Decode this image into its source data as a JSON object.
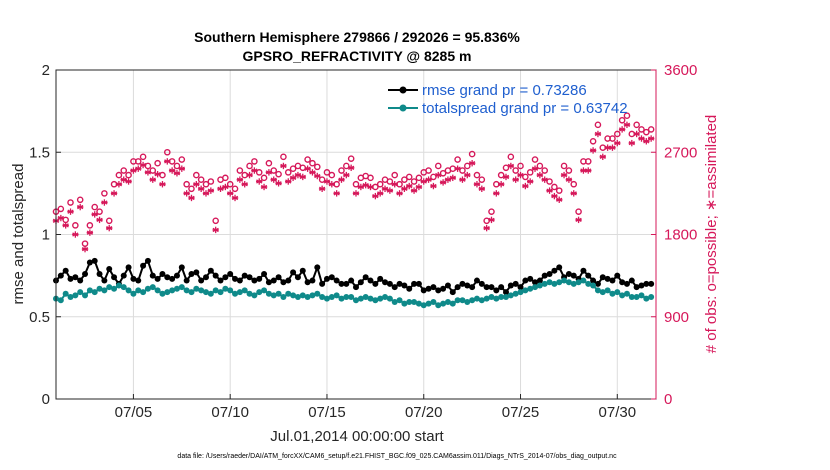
{
  "chart_data": {
    "type": "line",
    "title_line1": "Southern Hemisphere 279866 / 292026 = 95.836%",
    "title_line2": "GPSRO_REFRACTIVITY @ 8285 m",
    "xlabel": "Jul.01,2014 00:00:00 start",
    "ylabel_left": "rmse and totalspread",
    "ylabel_right": "# of obs: o=possible; ∗=assimilated",
    "footer": "data file: /Users/raeder/DAI/ATM_forcXX/CAM6_setup/f.e21.FHIST_BGC.f09_025.CAM6assim.011/Diags_NTrS_2014-07/obs_diag_output.nc",
    "x_ticks": [
      "07/05",
      "07/10",
      "07/15",
      "07/20",
      "07/25",
      "07/30"
    ],
    "x_tick_days": [
      5,
      10,
      15,
      20,
      25,
      30
    ],
    "xlim": [
      1.0,
      32.0
    ],
    "y_left_ticks": [
      "0",
      "0.5",
      "1",
      "1.5",
      "2"
    ],
    "ylim_left": [
      0,
      2
    ],
    "y_right_ticks": [
      "0",
      "900",
      "1800",
      "2700",
      "3600"
    ],
    "ylim_right": [
      0,
      3600
    ],
    "grid": true,
    "legend_position": "top-right",
    "x_days": [
      1.0,
      1.25,
      1.5,
      1.75,
      2.0,
      2.25,
      2.5,
      2.75,
      3.0,
      3.25,
      3.5,
      3.75,
      4.0,
      4.25,
      4.5,
      4.75,
      5.0,
      5.25,
      5.5,
      5.75,
      6.0,
      6.25,
      6.5,
      6.75,
      7.0,
      7.25,
      7.5,
      7.75,
      8.0,
      8.25,
      8.5,
      8.75,
      9.0,
      9.25,
      9.5,
      9.75,
      10.0,
      10.25,
      10.5,
      10.75,
      11.0,
      11.25,
      11.5,
      11.75,
      12.0,
      12.25,
      12.5,
      12.75,
      13.0,
      13.25,
      13.5,
      13.75,
      14.0,
      14.25,
      14.5,
      14.75,
      15.0,
      15.25,
      15.5,
      15.75,
      16.0,
      16.25,
      16.5,
      16.75,
      17.0,
      17.25,
      17.5,
      17.75,
      18.0,
      18.25,
      18.5,
      18.75,
      19.0,
      19.25,
      19.5,
      19.75,
      20.0,
      20.25,
      20.5,
      20.75,
      21.0,
      21.25,
      21.5,
      21.75,
      22.0,
      22.25,
      22.5,
      22.75,
      23.0,
      23.25,
      23.5,
      23.75,
      24.0,
      24.25,
      24.5,
      24.75,
      25.0,
      25.25,
      25.5,
      25.75,
      26.0,
      26.25,
      26.5,
      26.75,
      27.0,
      27.25,
      27.5,
      27.75,
      28.0,
      28.25,
      28.5,
      28.75,
      29.0,
      29.25,
      29.5,
      29.75,
      30.0,
      30.25,
      30.5,
      30.75,
      31.0,
      31.25,
      31.5,
      31.75
    ],
    "series": [
      {
        "name": "rmse grand pr = 0.73286",
        "axis": "left",
        "color": "#000000",
        "marker": "circle",
        "values": [
          0.72,
          0.75,
          0.78,
          0.73,
          0.74,
          0.72,
          0.76,
          0.83,
          0.84,
          0.76,
          0.72,
          0.79,
          0.74,
          0.7,
          0.75,
          0.8,
          0.73,
          0.72,
          0.81,
          0.84,
          0.75,
          0.73,
          0.76,
          0.74,
          0.73,
          0.75,
          0.8,
          0.72,
          0.76,
          0.77,
          0.72,
          0.74,
          0.78,
          0.75,
          0.72,
          0.74,
          0.76,
          0.73,
          0.72,
          0.75,
          0.74,
          0.72,
          0.73,
          0.76,
          0.71,
          0.72,
          0.74,
          0.71,
          0.72,
          0.77,
          0.74,
          0.78,
          0.71,
          0.72,
          0.8,
          0.7,
          0.73,
          0.74,
          0.72,
          0.7,
          0.7,
          0.72,
          0.68,
          0.71,
          0.74,
          0.72,
          0.7,
          0.73,
          0.71,
          0.7,
          0.68,
          0.7,
          0.69,
          0.67,
          0.7,
          0.7,
          0.66,
          0.67,
          0.68,
          0.66,
          0.67,
          0.69,
          0.65,
          0.68,
          0.7,
          0.69,
          0.68,
          0.72,
          0.7,
          0.68,
          0.68,
          0.66,
          0.68,
          0.65,
          0.69,
          0.7,
          0.68,
          0.72,
          0.73,
          0.71,
          0.72,
          0.75,
          0.76,
          0.78,
          0.8,
          0.74,
          0.76,
          0.75,
          0.73,
          0.78,
          0.75,
          0.72,
          0.7,
          0.74,
          0.73,
          0.72,
          0.75,
          0.71,
          0.7,
          0.72,
          0.68,
          0.69,
          0.7,
          0.7
        ]
      },
      {
        "name": "totalspread grand pr = 0.63742",
        "axis": "left",
        "color": "#0f8a8a",
        "marker": "circle",
        "values": [
          0.61,
          0.6,
          0.64,
          0.62,
          0.63,
          0.65,
          0.63,
          0.66,
          0.65,
          0.67,
          0.66,
          0.68,
          0.67,
          0.69,
          0.68,
          0.66,
          0.64,
          0.66,
          0.65,
          0.67,
          0.68,
          0.66,
          0.64,
          0.65,
          0.66,
          0.67,
          0.68,
          0.66,
          0.65,
          0.67,
          0.66,
          0.65,
          0.64,
          0.66,
          0.65,
          0.67,
          0.66,
          0.64,
          0.65,
          0.66,
          0.64,
          0.63,
          0.65,
          0.66,
          0.64,
          0.63,
          0.64,
          0.62,
          0.64,
          0.63,
          0.62,
          0.63,
          0.62,
          0.63,
          0.64,
          0.62,
          0.61,
          0.62,
          0.63,
          0.61,
          0.62,
          0.62,
          0.6,
          0.61,
          0.62,
          0.61,
          0.6,
          0.61,
          0.62,
          0.61,
          0.59,
          0.6,
          0.58,
          0.59,
          0.59,
          0.58,
          0.57,
          0.58,
          0.59,
          0.57,
          0.58,
          0.59,
          0.58,
          0.6,
          0.6,
          0.59,
          0.6,
          0.61,
          0.6,
          0.61,
          0.62,
          0.61,
          0.62,
          0.62,
          0.63,
          0.64,
          0.65,
          0.66,
          0.67,
          0.68,
          0.69,
          0.7,
          0.71,
          0.7,
          0.71,
          0.72,
          0.71,
          0.7,
          0.71,
          0.72,
          0.7,
          0.69,
          0.66,
          0.65,
          0.66,
          0.64,
          0.65,
          0.63,
          0.64,
          0.62,
          0.62,
          0.63,
          0.61,
          0.62
        ]
      },
      {
        "name": "possible",
        "axis": "right",
        "color": "#d6185a",
        "marker": "o",
        "values": [
          2050,
          2080,
          1960,
          2150,
          1900,
          2180,
          1700,
          1900,
          2100,
          2050,
          2250,
          1950,
          2350,
          2450,
          2500,
          2450,
          2600,
          2600,
          2650,
          2550,
          2500,
          2580,
          2450,
          2700,
          2600,
          2550,
          2620,
          2350,
          2300,
          2450,
          2400,
          2350,
          2380,
          1950,
          2400,
          2420,
          2350,
          2300,
          2500,
          2450,
          2550,
          2600,
          2480,
          2420,
          2580,
          2500,
          2460,
          2650,
          2480,
          2520,
          2550,
          2530,
          2620,
          2580,
          2540,
          2400,
          2480,
          2450,
          2350,
          2500,
          2550,
          2630,
          2350,
          2420,
          2440,
          2420,
          2320,
          2350,
          2400,
          2380,
          2450,
          2350,
          2400,
          2430,
          2380,
          2420,
          2480,
          2500,
          2430,
          2550,
          2470,
          2500,
          2520,
          2620,
          2500,
          2550,
          2680,
          2450,
          2400,
          1950,
          2050,
          2350,
          2450,
          2530,
          2650,
          2500,
          2550,
          2430,
          2480,
          2620,
          2550,
          2500,
          2380,
          2320,
          2280,
          2550,
          2500,
          2350,
          2050,
          2600,
          2600,
          2820,
          3000,
          2750,
          2850,
          2850,
          2900,
          3050,
          3100,
          2900,
          3000,
          2950,
          2920,
          2950
        ]
      },
      {
        "name": "assimilated",
        "axis": "right",
        "color": "#d6185a",
        "marker": "asterisk",
        "values": [
          1950,
          1980,
          1900,
          2050,
          1800,
          2100,
          1640,
          1820,
          2020,
          1960,
          2150,
          1870,
          2250,
          2350,
          2400,
          2380,
          2500,
          2520,
          2560,
          2480,
          2400,
          2460,
          2350,
          2600,
          2500,
          2470,
          2520,
          2250,
          2200,
          2350,
          2300,
          2250,
          2280,
          1850,
          2300,
          2320,
          2250,
          2200,
          2400,
          2350,
          2450,
          2500,
          2380,
          2320,
          2480,
          2400,
          2360,
          2550,
          2380,
          2420,
          2450,
          2430,
          2520,
          2480,
          2440,
          2300,
          2380,
          2350,
          2250,
          2400,
          2450,
          2530,
          2250,
          2320,
          2340,
          2320,
          2220,
          2250,
          2300,
          2280,
          2350,
          2250,
          2300,
          2330,
          2280,
          2320,
          2380,
          2400,
          2330,
          2450,
          2370,
          2400,
          2420,
          2520,
          2400,
          2450,
          2580,
          2350,
          2300,
          1870,
          1960,
          2250,
          2350,
          2430,
          2550,
          2400,
          2450,
          2330,
          2380,
          2520,
          2450,
          2400,
          2280,
          2220,
          2180,
          2450,
          2400,
          2250,
          1960,
          2500,
          2500,
          2720,
          2900,
          2650,
          2750,
          2750,
          2800,
          2950,
          3000,
          2800,
          2900,
          2850,
          2820,
          2850
        ]
      }
    ]
  }
}
